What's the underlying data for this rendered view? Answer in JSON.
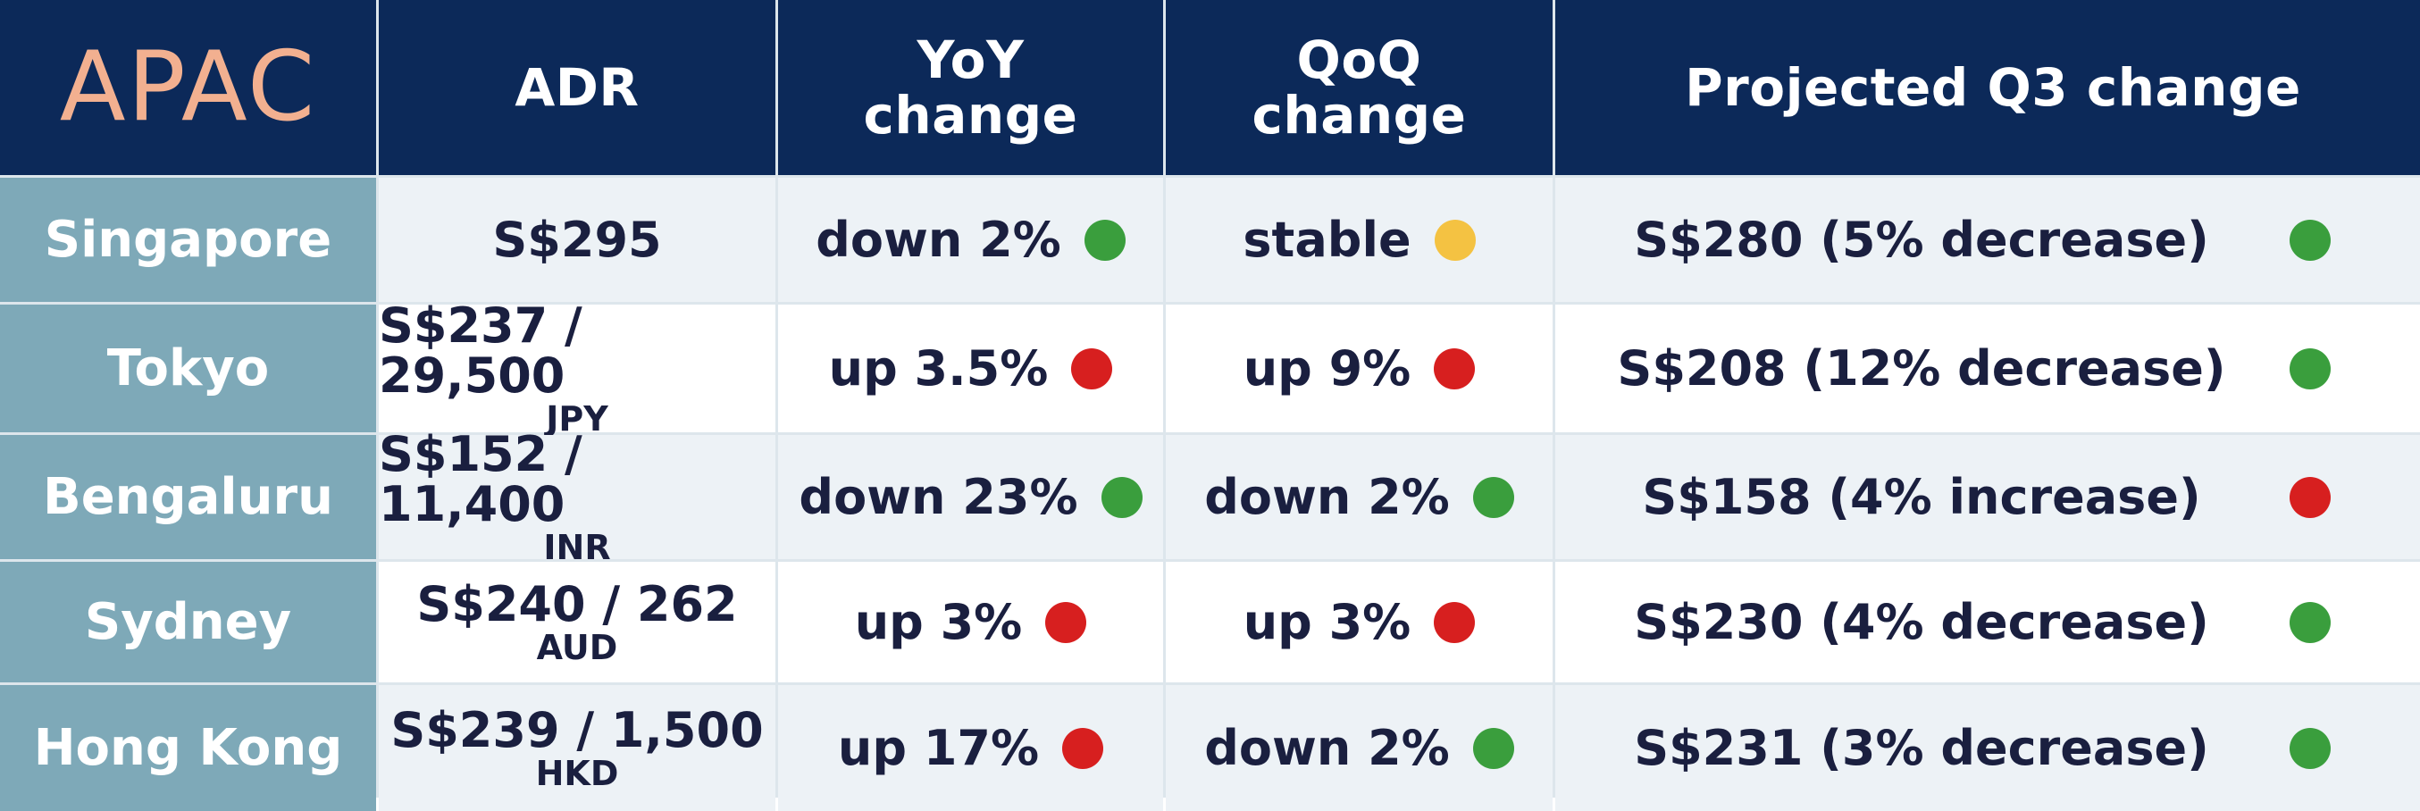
{
  "header": {
    "region": "APAC",
    "adr": "ADR",
    "yoy": [
      "YoY",
      "change"
    ],
    "qoq": [
      "QoQ",
      "change"
    ],
    "projected": "Projected Q3 change"
  },
  "colors": {
    "header_bg": "#0c2959",
    "region_text": "#f2b090",
    "city_bg": "#7ea9b8",
    "green": "#3a9e3d",
    "red": "#d71f1f",
    "yellow": "#f4c242",
    "text": "#1a1f3f"
  },
  "rows": [
    {
      "city": "Singapore",
      "adr": "S$295",
      "adr_currency": "",
      "yoy": "down 2%",
      "yoy_status": "green",
      "qoq": "stable",
      "qoq_status": "yellow",
      "projected": "S$280 (5% decrease)",
      "projected_status": "green"
    },
    {
      "city": "Tokyo",
      "adr": "S$237 / 29,500",
      "adr_currency": "JPY",
      "yoy": "up 3.5%",
      "yoy_status": "red",
      "qoq": "up 9%",
      "qoq_status": "red",
      "projected": "S$208 (12% decrease)",
      "projected_status": "green"
    },
    {
      "city": "Bengaluru",
      "adr": "S$152 / 11,400",
      "adr_currency": "INR",
      "yoy": "down 23%",
      "yoy_status": "green",
      "qoq": "down 2%",
      "qoq_status": "green",
      "projected": "S$158 (4% increase)",
      "projected_status": "red"
    },
    {
      "city": "Sydney",
      "adr": "S$240 / 262",
      "adr_currency": "AUD",
      "yoy": "up 3%",
      "yoy_status": "red",
      "qoq": "up 3%",
      "qoq_status": "red",
      "projected": "S$230 (4% decrease)",
      "projected_status": "green"
    },
    {
      "city": "Hong Kong",
      "adr": "S$239 / 1,500",
      "adr_currency": "HKD",
      "yoy": "up 17%",
      "yoy_status": "red",
      "qoq": "down 2%",
      "qoq_status": "green",
      "projected": "S$231 (3% decrease)",
      "projected_status": "green"
    }
  ]
}
